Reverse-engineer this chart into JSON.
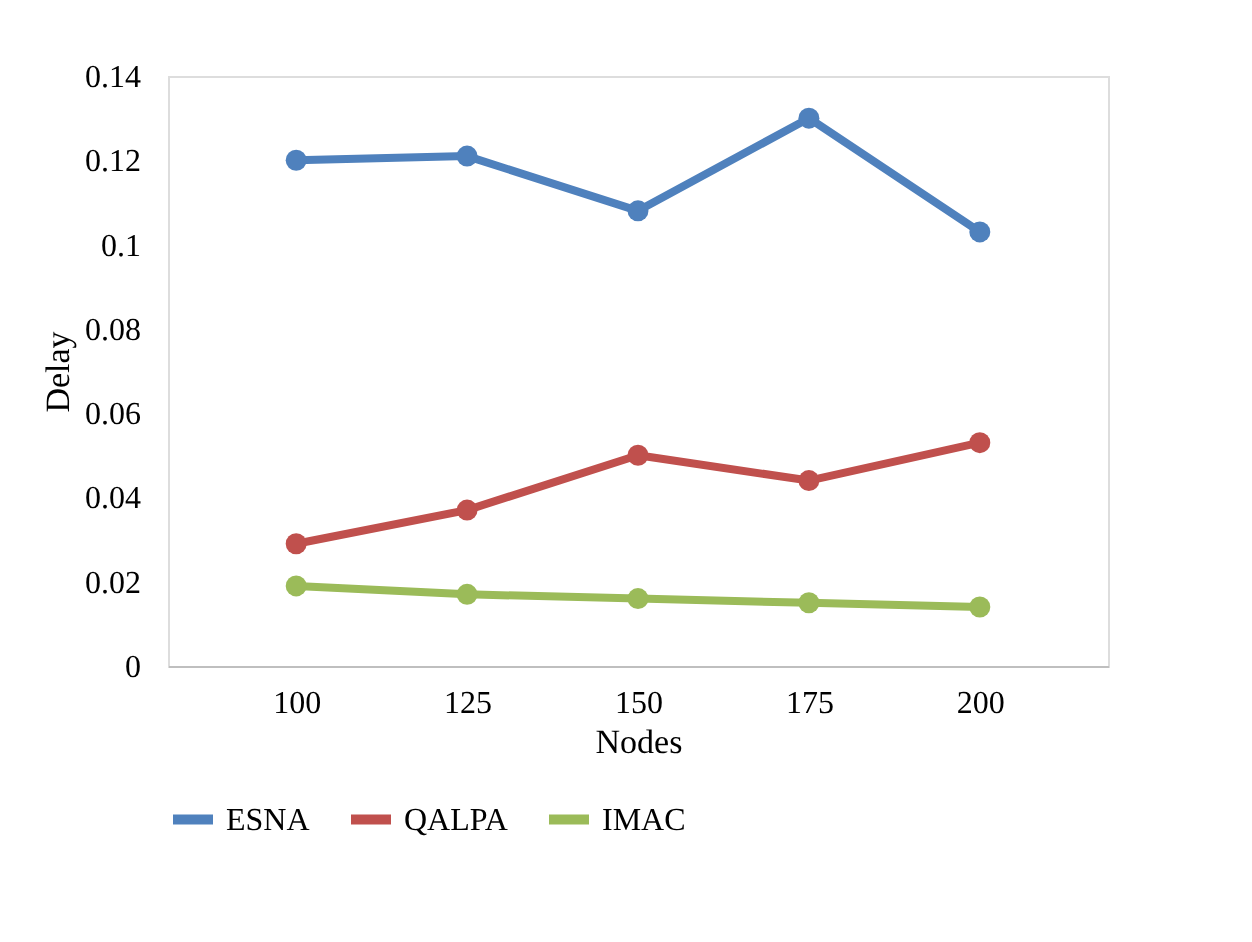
{
  "chart_data": {
    "type": "line",
    "xlabel": "Nodes",
    "ylabel": "Delay",
    "categories": [
      "100",
      "125",
      "150",
      "175",
      "200"
    ],
    "series": [
      {
        "name": "ESNA",
        "color": "#4f81bd",
        "values": [
          0.12,
          0.121,
          0.108,
          0.13,
          0.103
        ]
      },
      {
        "name": "QALPA",
        "color": "#c0504d",
        "values": [
          0.029,
          0.037,
          0.05,
          0.044,
          0.053
        ]
      },
      {
        "name": "IMAC",
        "color": "#9bbb59",
        "values": [
          0.019,
          0.017,
          0.016,
          0.015,
          0.014
        ]
      }
    ],
    "ylim": [
      0,
      0.14
    ],
    "yticks": [
      0,
      0.02,
      0.04,
      0.06,
      0.08,
      0.1,
      0.12,
      0.14
    ],
    "grid": false,
    "legend": "bottom",
    "marker": "circle",
    "line_style": "solid"
  }
}
